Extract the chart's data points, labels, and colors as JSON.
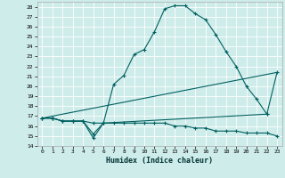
{
  "xlabel": "Humidex (Indice chaleur)",
  "background_color": "#ceecea",
  "line_color": "#006060",
  "xlim": [
    -0.5,
    23.5
  ],
  "ylim": [
    14,
    28.5
  ],
  "yticks": [
    14,
    15,
    16,
    17,
    18,
    19,
    20,
    21,
    22,
    23,
    24,
    25,
    26,
    27,
    28
  ],
  "xticks": [
    0,
    1,
    2,
    3,
    4,
    5,
    6,
    7,
    8,
    9,
    10,
    11,
    12,
    13,
    14,
    15,
    16,
    17,
    18,
    19,
    20,
    21,
    22,
    23
  ],
  "series1_x": [
    0,
    1,
    2,
    3,
    4,
    5,
    6,
    7,
    8,
    9,
    10,
    11,
    12,
    13,
    14,
    15,
    16,
    17,
    18,
    19,
    20,
    21,
    22
  ],
  "series1_y": [
    16.8,
    16.8,
    16.5,
    16.5,
    16.5,
    14.8,
    16.3,
    20.2,
    21.1,
    23.2,
    23.7,
    25.5,
    27.8,
    28.1,
    28.1,
    27.3,
    26.7,
    25.2,
    23.5,
    22.0,
    20.0,
    18.7,
    17.2
  ],
  "series2_x": [
    0,
    1,
    2,
    3,
    4,
    5,
    6,
    22,
    23
  ],
  "series2_y": [
    16.8,
    16.8,
    16.5,
    16.5,
    16.5,
    15.2,
    16.3,
    17.2,
    21.4
  ],
  "series3_x": [
    0,
    23
  ],
  "series3_y": [
    16.8,
    21.4
  ],
  "series4_x": [
    0,
    1,
    2,
    3,
    4,
    5,
    6,
    7,
    8,
    9,
    10,
    11,
    12,
    13,
    14,
    15,
    16,
    17,
    18,
    19,
    20,
    21,
    22,
    23
  ],
  "series4_y": [
    16.8,
    16.8,
    16.5,
    16.5,
    16.5,
    16.3,
    16.3,
    16.3,
    16.3,
    16.3,
    16.3,
    16.3,
    16.3,
    16.0,
    16.0,
    15.8,
    15.8,
    15.5,
    15.5,
    15.5,
    15.3,
    15.3,
    15.3,
    15.0
  ]
}
